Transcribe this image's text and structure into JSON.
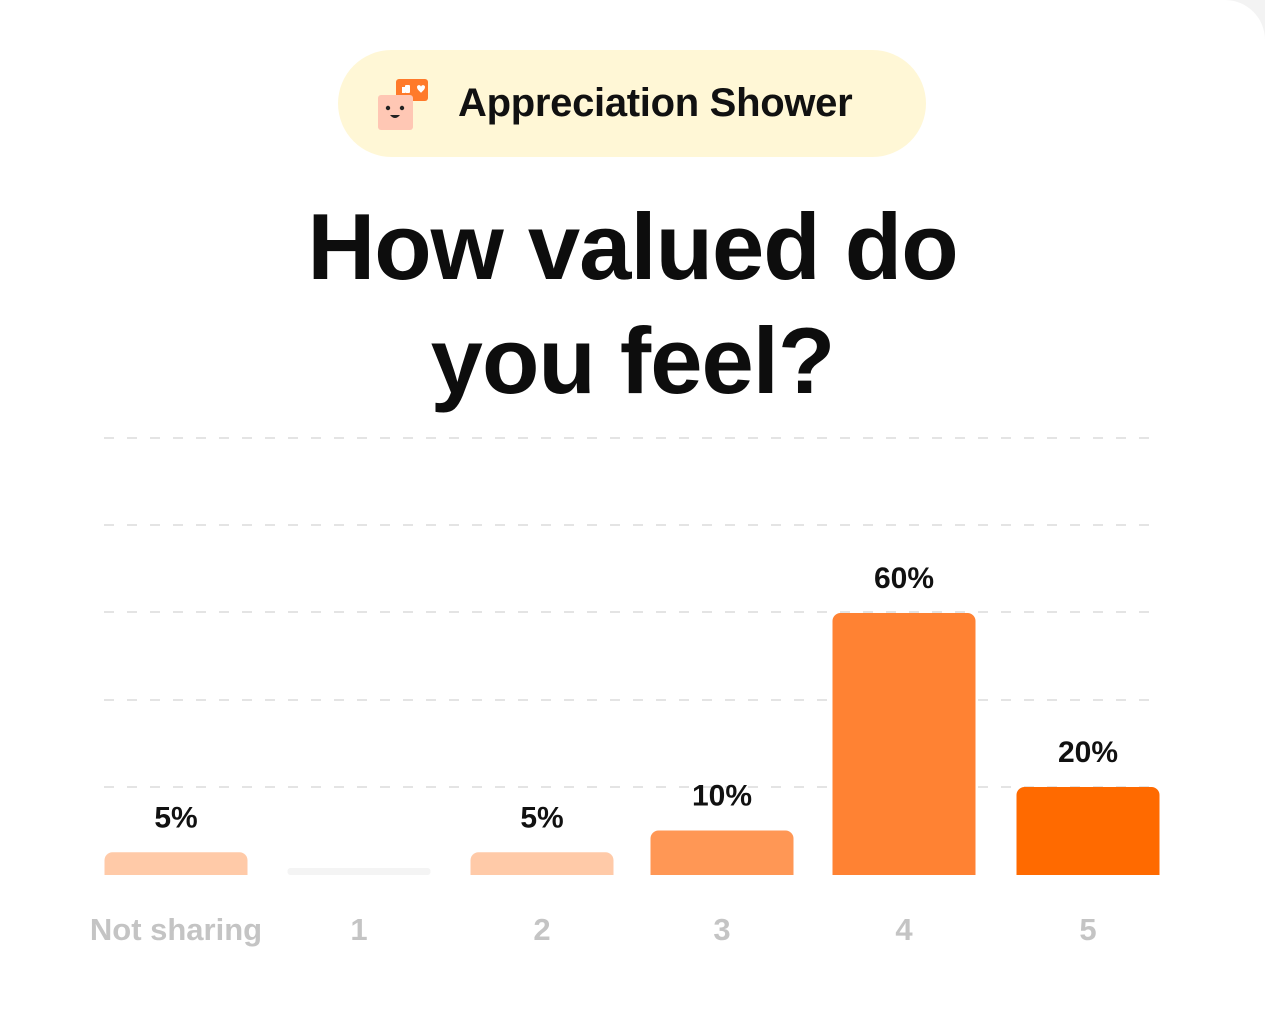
{
  "header": {
    "badge_label": "Appreciation Shower",
    "badge_icon": "chat-face-icon"
  },
  "question": {
    "line1": "How valued do",
    "line2": "you feel?"
  },
  "colors": {
    "background": "#ffffff",
    "badge_bg": "#fff7d6",
    "grid": "#e4e4e4",
    "tick_label": "#c4c4c4",
    "value_label": "#111111"
  },
  "chart_data": {
    "type": "bar",
    "title": "How valued do you feel?",
    "xlabel": "",
    "ylabel": "",
    "categories": [
      "Not sharing",
      "1",
      "2",
      "3",
      "4",
      "5"
    ],
    "values": [
      5,
      0,
      5,
      10,
      60,
      20
    ],
    "value_labels": [
      "5%",
      "",
      "5%",
      "10%",
      "60%",
      "20%"
    ],
    "bar_colors": [
      "#ffcaa8",
      "#f4f4f4",
      "#ffcaa8",
      "#ff9755",
      "#ff8233",
      "#ff6a00"
    ],
    "ylim": [
      0,
      100
    ],
    "grid": true,
    "legend": "none"
  }
}
